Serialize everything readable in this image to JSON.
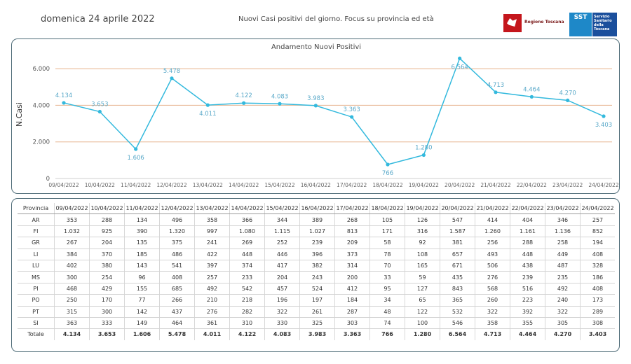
{
  "header": {
    "date": "domenica 24 aprile 2022",
    "subtitle": "Nuovi Casi positivi del giorno. Focus su provincia ed età",
    "logo_regione": "Regione Toscana",
    "logo_sst_short": "SST",
    "logo_sst_full": "Servizio Sanitario della Toscana"
  },
  "chart_data": {
    "type": "line",
    "title": "Andamento Nuovi Positivi",
    "xlabel": "",
    "ylabel": "N.Casi",
    "ylim": [
      0,
      7000
    ],
    "yticks": [
      0,
      2000,
      4000,
      6000
    ],
    "ytick_labels": [
      "0",
      "2.000",
      "4.000",
      "6.000"
    ],
    "grid": true,
    "categories": [
      "09/04/2022",
      "10/04/2022",
      "11/04/2022",
      "12/04/2022",
      "13/04/2022",
      "14/04/2022",
      "15/04/2022",
      "16/04/2022",
      "17/04/2022",
      "18/04/2022",
      "19/04/2022",
      "20/04/2022",
      "21/04/2022",
      "22/04/2022",
      "23/04/2022",
      "24/04/2022"
    ],
    "series": [
      {
        "name": "Nuovi Positivi",
        "values": [
          4134,
          3653,
          1606,
          5478,
          4011,
          4122,
          4083,
          3983,
          3363,
          766,
          1280,
          6564,
          4713,
          4464,
          4270,
          3403
        ]
      }
    ],
    "data_labels": [
      "4.134",
      "3.653",
      "1.606",
      "5.478",
      "4.011",
      "4.122",
      "4.083",
      "3.983",
      "3.363",
      "766",
      "1.280",
      "6.564",
      "4.713",
      "4.464",
      "4.270",
      "3.403"
    ],
    "label_positions": [
      "above",
      "above",
      "below",
      "above",
      "below",
      "above",
      "above",
      "above",
      "above",
      "below",
      "above",
      "below",
      "above",
      "above",
      "above",
      "below"
    ],
    "colors": {
      "line": "#33b9dd",
      "grid": "#e6b38e",
      "label": "#5aa9c9"
    }
  },
  "table": {
    "header": [
      "Provincia",
      "09/04/2022",
      "10/04/2022",
      "11/04/2022",
      "12/04/2022",
      "13/04/2022",
      "14/04/2022",
      "15/04/2022",
      "16/04/2022",
      "17/04/2022",
      "18/04/2022",
      "19/04/2022",
      "20/04/2022",
      "21/04/2022",
      "22/04/2022",
      "23/04/2022",
      "24/04/2022"
    ],
    "rows": [
      [
        "AR",
        "353",
        "288",
        "134",
        "496",
        "358",
        "366",
        "344",
        "389",
        "268",
        "105",
        "126",
        "547",
        "414",
        "404",
        "346",
        "257"
      ],
      [
        "FI",
        "1.032",
        "925",
        "390",
        "1.320",
        "997",
        "1.080",
        "1.115",
        "1.027",
        "813",
        "171",
        "316",
        "1.587",
        "1.260",
        "1.161",
        "1.136",
        "852"
      ],
      [
        "GR",
        "267",
        "204",
        "135",
        "375",
        "241",
        "269",
        "252",
        "239",
        "209",
        "58",
        "92",
        "381",
        "256",
        "288",
        "258",
        "194"
      ],
      [
        "LI",
        "384",
        "370",
        "185",
        "486",
        "422",
        "448",
        "446",
        "396",
        "373",
        "78",
        "108",
        "657",
        "493",
        "448",
        "449",
        "408"
      ],
      [
        "LU",
        "402",
        "380",
        "143",
        "541",
        "397",
        "374",
        "417",
        "382",
        "314",
        "70",
        "165",
        "671",
        "506",
        "438",
        "487",
        "328"
      ],
      [
        "MS",
        "300",
        "254",
        "96",
        "408",
        "257",
        "233",
        "204",
        "243",
        "200",
        "33",
        "59",
        "435",
        "276",
        "239",
        "235",
        "186"
      ],
      [
        "PI",
        "468",
        "429",
        "155",
        "685",
        "492",
        "542",
        "457",
        "524",
        "412",
        "95",
        "127",
        "843",
        "568",
        "516",
        "492",
        "408"
      ],
      [
        "PO",
        "250",
        "170",
        "77",
        "266",
        "210",
        "218",
        "196",
        "197",
        "184",
        "34",
        "65",
        "365",
        "260",
        "223",
        "240",
        "173"
      ],
      [
        "PT",
        "315",
        "300",
        "142",
        "437",
        "276",
        "282",
        "322",
        "261",
        "287",
        "48",
        "122",
        "532",
        "322",
        "392",
        "322",
        "289"
      ],
      [
        "SI",
        "363",
        "333",
        "149",
        "464",
        "361",
        "310",
        "330",
        "325",
        "303",
        "74",
        "100",
        "546",
        "358",
        "355",
        "305",
        "308"
      ]
    ],
    "total": [
      "Totale",
      "4.134",
      "3.653",
      "1.606",
      "5.478",
      "4.011",
      "4.122",
      "4.083",
      "3.983",
      "3.363",
      "766",
      "1.280",
      "6.564",
      "4.713",
      "4.464",
      "4.270",
      "3.403"
    ]
  }
}
